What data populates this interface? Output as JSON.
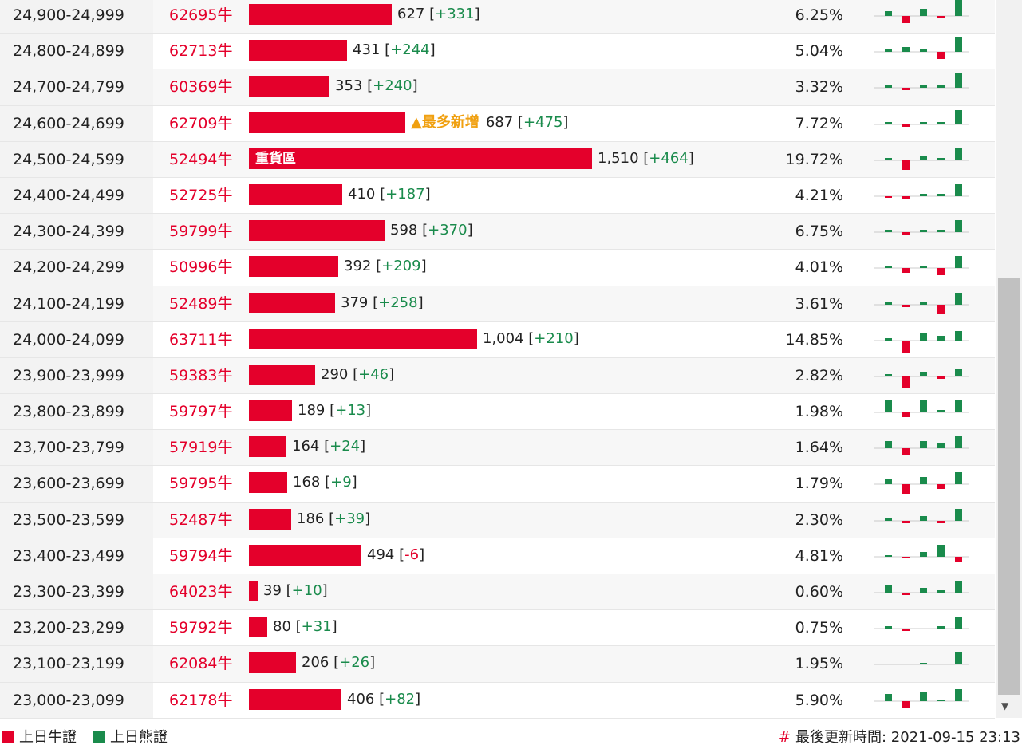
{
  "colors": {
    "bull": "#e4002b",
    "bear": "#1a8b4c",
    "hot": "#f0a010"
  },
  "rows": [
    {
      "range": "24,900-24,999",
      "code": "62695牛",
      "volume": 627,
      "volume_label": "627",
      "change": "+331",
      "pct": "6.25%",
      "hist": [
        2,
        -3,
        3,
        -1,
        7
      ]
    },
    {
      "range": "24,800-24,899",
      "code": "62713牛",
      "volume": 431,
      "volume_label": "431",
      "change": "+244",
      "pct": "5.04%",
      "hist": [
        1,
        2,
        1,
        -3,
        6
      ]
    },
    {
      "range": "24,700-24,799",
      "code": "60369牛",
      "volume": 353,
      "volume_label": "353",
      "change": "+240",
      "pct": "3.32%",
      "hist": [
        1,
        -1,
        1,
        1,
        6
      ]
    },
    {
      "range": "24,600-24,699",
      "code": "62709牛",
      "volume": 687,
      "volume_label": "687",
      "change": "+475",
      "pct": "7.72%",
      "hot": "▲最多新增",
      "hist": [
        1,
        -1,
        1,
        1,
        6
      ]
    },
    {
      "range": "24,500-24,599",
      "code": "52494牛",
      "volume": 1510,
      "volume_label": "1,510",
      "change": "+464",
      "pct": "19.72%",
      "tag": "重貨區",
      "hist": [
        1,
        -4,
        2,
        1,
        5
      ]
    },
    {
      "range": "24,400-24,499",
      "code": "52725牛",
      "volume": 410,
      "volume_label": "410",
      "change": "+187",
      "pct": "4.21%",
      "hist": [
        -0.5,
        -1,
        1,
        1,
        5
      ]
    },
    {
      "range": "24,300-24,399",
      "code": "59799牛",
      "volume": 598,
      "volume_label": "598",
      "change": "+370",
      "pct": "6.75%",
      "hist": [
        1,
        -1,
        1,
        1,
        5
      ]
    },
    {
      "range": "24,200-24,299",
      "code": "50996牛",
      "volume": 392,
      "volume_label": "392",
      "change": "+209",
      "pct": "4.01%",
      "hist": [
        1,
        -2,
        1,
        -3,
        5
      ]
    },
    {
      "range": "24,100-24,199",
      "code": "52489牛",
      "volume": 379,
      "volume_label": "379",
      "change": "+258",
      "pct": "3.61%",
      "hist": [
        1,
        -1,
        1,
        -4,
        5
      ]
    },
    {
      "range": "24,000-24,099",
      "code": "63711牛",
      "volume": 1004,
      "volume_label": "1,004",
      "change": "+210",
      "pct": "14.85%",
      "hist": [
        1,
        -5,
        3,
        2,
        4
      ]
    },
    {
      "range": "23,900-23,999",
      "code": "59383牛",
      "volume": 290,
      "volume_label": "290",
      "change": "+46",
      "pct": "2.82%",
      "hist": [
        1,
        -5,
        2,
        -1,
        3
      ]
    },
    {
      "range": "23,800-23,899",
      "code": "59797牛",
      "volume": 189,
      "volume_label": "189",
      "change": "+13",
      "pct": "1.98%",
      "hist": [
        5,
        -2,
        5,
        1,
        5
      ]
    },
    {
      "range": "23,700-23,799",
      "code": "57919牛",
      "volume": 164,
      "volume_label": "164",
      "change": "+24",
      "pct": "1.64%",
      "hist": [
        3,
        -3,
        3,
        2,
        5
      ]
    },
    {
      "range": "23,600-23,699",
      "code": "59795牛",
      "volume": 168,
      "volume_label": "168",
      "change": "+9",
      "pct": "1.79%",
      "hist": [
        2,
        -4,
        3,
        -2,
        5
      ]
    },
    {
      "range": "23,500-23,599",
      "code": "52487牛",
      "volume": 186,
      "volume_label": "186",
      "change": "+39",
      "pct": "2.30%",
      "hist": [
        1,
        -1,
        2,
        -1,
        5
      ]
    },
    {
      "range": "23,400-23,499",
      "code": "59794牛",
      "volume": 494,
      "volume_label": "494",
      "change": "-6",
      "pct": "4.81%",
      "hist": [
        0.5,
        -0.5,
        2,
        5,
        -2
      ]
    },
    {
      "range": "23,300-23,399",
      "code": "64023牛",
      "volume": 39,
      "volume_label": "39",
      "change": "+10",
      "pct": "0.60%",
      "hist": [
        3,
        -1,
        2,
        1,
        5
      ]
    },
    {
      "range": "23,200-23,299",
      "code": "59792牛",
      "volume": 80,
      "volume_label": "80",
      "change": "+31",
      "pct": "0.75%",
      "hist": [
        1,
        -1,
        0,
        1,
        5
      ]
    },
    {
      "range": "23,100-23,199",
      "code": "62084牛",
      "volume": 206,
      "volume_label": "206",
      "change": "+26",
      "pct": "1.95%",
      "hist": [
        0,
        0,
        0.5,
        0,
        5
      ]
    },
    {
      "range": "23,000-23,099",
      "code": "62178牛",
      "volume": 406,
      "volume_label": "406",
      "change": "+82",
      "pct": "5.90%",
      "hist": [
        3,
        -3,
        4,
        0.5,
        5
      ]
    }
  ],
  "legend": {
    "bull_label": "上日牛證",
    "bear_label": "上日熊證"
  },
  "updated": {
    "hash": "#",
    "label": "最後更新時間: 2021-09-15 23:13"
  }
}
